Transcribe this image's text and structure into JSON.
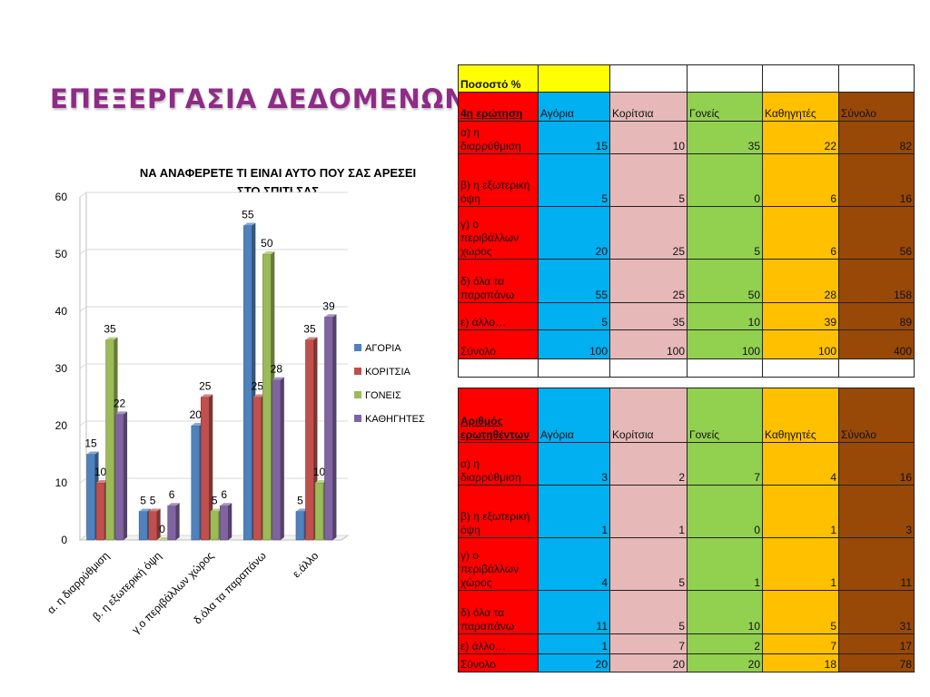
{
  "slide_title": "ΕΠΕΞΕΡΓΑΣΙΑ ΔΕΔΟΜΕΝΩΝ",
  "colors": {
    "title": "#8e2b86",
    "boys": "#00b0f0",
    "girls": "#e6b8b7",
    "parents": "#92d050",
    "teachers": "#ffc000",
    "total": "#984807",
    "label_col": "#ff0000",
    "header_yellow": "#ffff00"
  },
  "chart_data": {
    "type": "bar",
    "title": "ΝΑ ΑΝΑΦΕΡΕΤΕ ΤΙ ΕΙΝΑΙ ΑΥΤΟ ΠΟΥ ΣΑΣ ΑΡΕΣΕΙ ΣΤΟ ΣΠΙΤΙ ΣΑΣ",
    "title_lines": [
      "ΝΑ ΑΝΑΦΕΡΕΤΕ ΤΙ ΕΙΝΑΙ ΑΥΤΟ ΠΟΥ ΣΑΣ ΑΡΕΣΕΙ",
      "ΣΤΟ ΣΠΙΤΙ ΣΑΣ"
    ],
    "categories": [
      "α. η διαρρύθμιση",
      "β. η εξωτερική όψη",
      "γ.ο περιβάλλων χώρος",
      "δ.όλα τα παραπάνω",
      "ε.άλλο"
    ],
    "series": [
      {
        "name": "ΑΓΟΡΙΑ",
        "color": "#4f81bd",
        "values": [
          15,
          5,
          20,
          55,
          5
        ]
      },
      {
        "name": "ΚΟΡΙΤΣΙΑ",
        "color": "#c0504d",
        "values": [
          10,
          5,
          25,
          25,
          35
        ]
      },
      {
        "name": "ΓΟΝΕΙΣ",
        "color": "#9bbb59",
        "values": [
          35,
          0,
          5,
          50,
          10
        ]
      },
      {
        "name": "ΚΑΘΗΓΗΤΕΣ",
        "color": "#8064a2",
        "values": [
          22,
          6,
          6,
          28,
          39
        ]
      }
    ],
    "ylim": [
      0,
      60
    ],
    "yticks": [
      0,
      10,
      20,
      30,
      40,
      50,
      60
    ],
    "legend": "right"
  },
  "tables": [
    {
      "header_label": "Ποσοστό %",
      "question_label": "4η ερώτηση",
      "columns": [
        "Αγόρια",
        "Κορίτσια",
        "Γονείς",
        "Καθηγητές",
        "Σύνολο"
      ],
      "rows": [
        {
          "label": "α) η διαρρύθμιση",
          "values": [
            "15",
            "10",
            "35",
            "22",
            "82"
          ]
        },
        {
          "label": "β) η εξωτερική όψη",
          "values": [
            "5",
            "5",
            "0",
            "6",
            "16"
          ]
        },
        {
          "label": "γ) ο περιβάλλων χώρος",
          "values": [
            "20",
            "25",
            "5",
            "6",
            "56"
          ]
        },
        {
          "label": "δ) όλα τα παραπάνω",
          "values": [
            "55",
            "25",
            "50",
            "28",
            "158"
          ]
        },
        {
          "label": "ε) άλλο…",
          "values": [
            "5",
            "35",
            "10",
            "39",
            "89"
          ]
        },
        {
          "label": "Σύνολο",
          "values": [
            "100",
            "100",
            "100",
            "100",
            "400"
          ]
        }
      ]
    },
    {
      "question_label": "Αριθμός ερωτηθέντων",
      "columns": [
        "Αγόρια",
        "Κορίτσια",
        "Γονείς",
        "Καθηγητές",
        "Σύνολο"
      ],
      "rows": [
        {
          "label": "α) η διαρρύθμιση",
          "values": [
            "3",
            "2",
            "7",
            "4",
            "16"
          ]
        },
        {
          "label": "β) η εξωτερική όψη",
          "values": [
            "1",
            "1",
            "0",
            "1",
            "3"
          ]
        },
        {
          "label": "γ) ο περιβάλλων χώρος",
          "values": [
            "4",
            "5",
            "1",
            "1",
            "11"
          ]
        },
        {
          "label": "δ) όλα τα παραπάνω",
          "values": [
            "11",
            "5",
            "10",
            "5",
            "31"
          ]
        },
        {
          "label": "ε) άλλο…",
          "values": [
            "1",
            "7",
            "2",
            "7",
            "17"
          ]
        },
        {
          "label": "Σύνολο",
          "values": [
            "20",
            "20",
            "20",
            "18",
            "78"
          ]
        }
      ]
    }
  ]
}
